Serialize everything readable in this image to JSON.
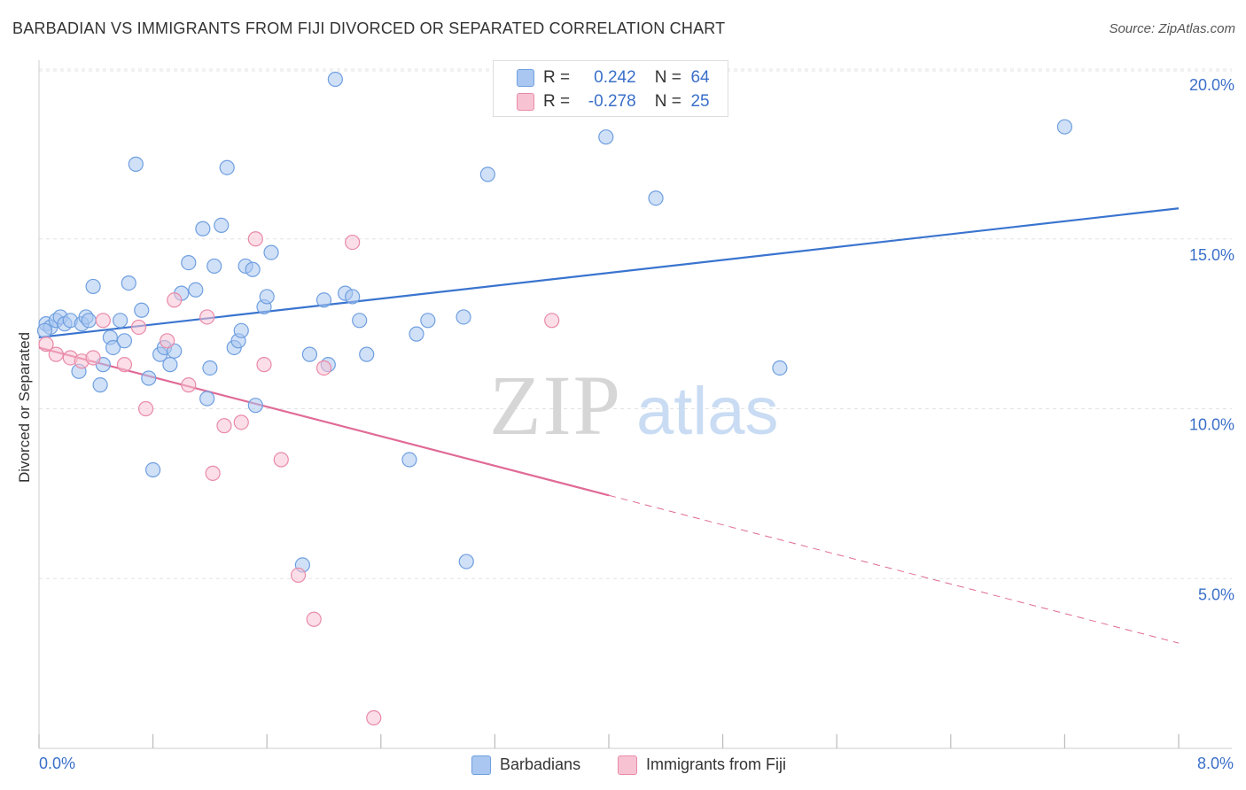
{
  "title": "BARBADIAN VS IMMIGRANTS FROM FIJI DIVORCED OR SEPARATED CORRELATION CHART",
  "source": "Source: ZipAtlas.com",
  "watermark": {
    "zip": "ZIP",
    "atlas": "atlas"
  },
  "legend": {
    "rows": [
      {
        "r_label": "R =",
        "r_value": "0.242",
        "n_label": "N =",
        "n_value": "64",
        "color": "#a9c7f0",
        "border": "#6f9fe0"
      },
      {
        "r_label": "R =",
        "r_value": "-0.278",
        "n_label": "N =",
        "n_value": "25",
        "color": "#f7c3d3",
        "border": "#e98aa8"
      }
    ]
  },
  "bottom_legend": [
    {
      "label": "Barbadians",
      "color": "#a9c7f0",
      "border": "#6f9fe0"
    },
    {
      "label": "Immigrants from Fiji",
      "color": "#f7c3d3",
      "border": "#e98aa8"
    }
  ],
  "chart_data": {
    "type": "scatter",
    "title": "BARBADIAN VS IMMIGRANTS FROM FIJI DIVORCED OR SEPARATED CORRELATION CHART",
    "xlabel": "",
    "ylabel": "Divorced or Separated",
    "xlim": [
      0,
      8
    ],
    "ylim": [
      0,
      20
    ],
    "x_tick_labels": [
      "0.0%",
      "8.0%"
    ],
    "y_ticks": [
      5,
      10,
      15,
      20
    ],
    "y_tick_labels": [
      "5.0%",
      "10.0%",
      "15.0%",
      "20.0%"
    ],
    "grid": true,
    "legend_position": "top-center",
    "series": [
      {
        "name": "Barbadians",
        "color": "#6f9fe0",
        "fill": "#a9c7f0",
        "trend": {
          "x": [
            0,
            8
          ],
          "y": [
            12.1,
            15.9
          ],
          "dashed_from": null,
          "color": "#3a74cf"
        },
        "points": [
          [
            0.05,
            12.5
          ],
          [
            0.08,
            12.4
          ],
          [
            0.12,
            12.6
          ],
          [
            0.15,
            12.7
          ],
          [
            0.18,
            12.5
          ],
          [
            0.22,
            12.6
          ],
          [
            0.28,
            11.1
          ],
          [
            0.3,
            12.5
          ],
          [
            0.33,
            12.7
          ],
          [
            0.35,
            12.6
          ],
          [
            0.38,
            13.6
          ],
          [
            0.43,
            10.7
          ],
          [
            0.45,
            11.3
          ],
          [
            0.5,
            12.1
          ],
          [
            0.52,
            11.8
          ],
          [
            0.57,
            12.6
          ],
          [
            0.6,
            12.0
          ],
          [
            0.63,
            13.7
          ],
          [
            0.68,
            17.2
          ],
          [
            0.72,
            12.9
          ],
          [
            0.77,
            10.9
          ],
          [
            0.8,
            8.2
          ],
          [
            0.85,
            11.6
          ],
          [
            0.88,
            11.8
          ],
          [
            0.92,
            11.3
          ],
          [
            0.95,
            11.7
          ],
          [
            1.0,
            13.4
          ],
          [
            1.05,
            14.3
          ],
          [
            1.1,
            13.5
          ],
          [
            1.15,
            15.3
          ],
          [
            1.18,
            10.3
          ],
          [
            1.2,
            11.2
          ],
          [
            1.23,
            14.2
          ],
          [
            1.28,
            15.4
          ],
          [
            1.32,
            17.1
          ],
          [
            1.37,
            11.8
          ],
          [
            1.4,
            12.0
          ],
          [
            1.42,
            12.3
          ],
          [
            1.45,
            14.2
          ],
          [
            1.5,
            14.1
          ],
          [
            1.52,
            10.1
          ],
          [
            1.58,
            13.0
          ],
          [
            1.6,
            13.3
          ],
          [
            1.63,
            14.6
          ],
          [
            1.85,
            5.4
          ],
          [
            1.9,
            11.6
          ],
          [
            2.0,
            13.2
          ],
          [
            2.03,
            11.3
          ],
          [
            2.08,
            19.7
          ],
          [
            2.15,
            13.4
          ],
          [
            2.2,
            13.3
          ],
          [
            2.25,
            12.6
          ],
          [
            2.3,
            11.6
          ],
          [
            2.6,
            8.5
          ],
          [
            2.65,
            12.2
          ],
          [
            2.73,
            12.6
          ],
          [
            2.98,
            12.7
          ],
          [
            3.0,
            5.5
          ],
          [
            3.15,
            16.9
          ],
          [
            3.98,
            18.0
          ],
          [
            4.33,
            16.2
          ],
          [
            5.2,
            11.2
          ],
          [
            7.2,
            18.3
          ],
          [
            0.04,
            12.3
          ]
        ]
      },
      {
        "name": "Immigrants from Fiji",
        "color": "#e98aa8",
        "fill": "#f7c3d3",
        "trend": {
          "x": [
            0,
            8
          ],
          "y": [
            11.8,
            3.1
          ],
          "dashed_from": 4.0,
          "color": "#e06b96"
        },
        "points": [
          [
            0.05,
            11.9
          ],
          [
            0.12,
            11.6
          ],
          [
            0.22,
            11.5
          ],
          [
            0.3,
            11.4
          ],
          [
            0.38,
            11.5
          ],
          [
            0.45,
            12.6
          ],
          [
            0.6,
            11.3
          ],
          [
            0.7,
            12.4
          ],
          [
            0.75,
            10.0
          ],
          [
            0.9,
            12.0
          ],
          [
            0.95,
            13.2
          ],
          [
            1.05,
            10.7
          ],
          [
            1.18,
            12.7
          ],
          [
            1.22,
            8.1
          ],
          [
            1.3,
            9.5
          ],
          [
            1.42,
            9.6
          ],
          [
            1.52,
            15.0
          ],
          [
            1.58,
            11.3
          ],
          [
            1.7,
            8.5
          ],
          [
            1.82,
            5.1
          ],
          [
            1.93,
            3.8
          ],
          [
            2.0,
            11.2
          ],
          [
            2.2,
            14.9
          ],
          [
            2.35,
            0.9
          ],
          [
            3.6,
            12.6
          ]
        ]
      }
    ]
  }
}
